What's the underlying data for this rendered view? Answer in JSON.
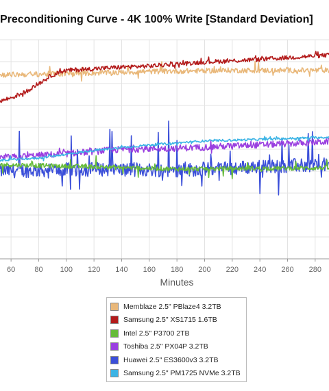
{
  "chart_data": {
    "type": "line",
    "title": "Preconditioning Curve - 4K 100% Write [Standard Deviation]",
    "xlabel": "Minutes",
    "ylabel": "",
    "xlim": [
      52,
      290
    ],
    "ylim": [
      0,
      10
    ],
    "x_ticks": [
      60,
      80,
      100,
      120,
      140,
      160,
      180,
      200,
      220,
      240,
      260,
      280
    ],
    "grid": true,
    "legend_placement": "bottom",
    "series": [
      {
        "name": "Memblaze 2.5\" PBlaze4 3.2TB",
        "color": "#e9b87a",
        "base": [
          [
            52,
            8.4
          ],
          [
            100,
            8.45
          ],
          [
            160,
            8.55
          ],
          [
            220,
            8.6
          ],
          [
            290,
            8.6
          ]
        ],
        "noise": 0.12,
        "spikes": 0.35
      },
      {
        "name": "Samsung 2.5\" XS1715 1.6TB",
        "color": "#b31b1b",
        "base": [
          [
            52,
            7.2
          ],
          [
            60,
            7.35
          ],
          [
            70,
            7.6
          ],
          [
            80,
            8.0
          ],
          [
            90,
            8.4
          ],
          [
            100,
            8.6
          ],
          [
            140,
            8.75
          ],
          [
            160,
            8.8
          ],
          [
            200,
            8.98
          ],
          [
            240,
            9.1
          ],
          [
            290,
            9.3
          ]
        ],
        "noise": 0.1,
        "spikes": 0.15
      },
      {
        "name": "Intel 2.5\" P3700 2TB",
        "color": "#66bb3a",
        "base": [
          [
            52,
            4.3
          ],
          [
            120,
            4.2
          ],
          [
            180,
            4.1
          ],
          [
            290,
            4.15
          ]
        ],
        "noise": 0.1,
        "spikes": 0.45
      },
      {
        "name": "Toshiba 2.5\" PX04P 3.2TB",
        "color": "#9a3fe0",
        "base": [
          [
            52,
            4.6
          ],
          [
            100,
            4.8
          ],
          [
            140,
            5.0
          ],
          [
            180,
            5.05
          ],
          [
            220,
            5.15
          ],
          [
            260,
            5.25
          ],
          [
            290,
            5.35
          ]
        ],
        "noise": 0.15,
        "spikes": 0.25
      },
      {
        "name": "Huawei 2.5\" ES3600v3 3.2TB",
        "color": "#3b4fd9",
        "base": [
          [
            52,
            4.0
          ],
          [
            120,
            4.1
          ],
          [
            180,
            4.05
          ],
          [
            240,
            4.2
          ],
          [
            290,
            4.3
          ]
        ],
        "noise": 0.32,
        "spikes": 1.1
      },
      {
        "name": "Samsung 2.5\" PM1725 NVMe 3.2TB",
        "color": "#3cb4e5",
        "base": [
          [
            52,
            4.5
          ],
          [
            80,
            4.6
          ],
          [
            120,
            4.95
          ],
          [
            160,
            5.2
          ],
          [
            200,
            5.38
          ],
          [
            240,
            5.45
          ],
          [
            290,
            5.55
          ]
        ],
        "noise": 0.05,
        "spikes": 0.12
      }
    ]
  }
}
